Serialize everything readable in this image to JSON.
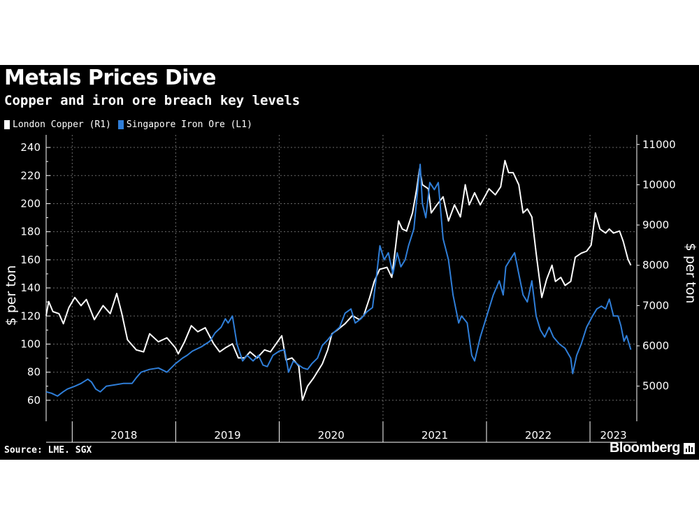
{
  "title": "Metals Prices Dive",
  "subtitle": "Copper and iron ore breach key levels",
  "source": "Source: LME. SGX",
  "brand": "Bloomberg",
  "colors": {
    "background": "#000000",
    "copper": "#ffffff",
    "iron_ore": "#2f7ed8",
    "grid": "#6a6a6a"
  },
  "chart_data": {
    "type": "line",
    "grid": true,
    "legend_position": "top-left",
    "x_labels": [
      "2018",
      "2019",
      "2020",
      "2021",
      "2022",
      "2023"
    ],
    "xlim": [
      "2017-10-01",
      "2023-06-15"
    ],
    "y_left": {
      "label": "$ per ton",
      "ticks": [
        60,
        80,
        100,
        120,
        140,
        160,
        180,
        200,
        220,
        240
      ],
      "lim": [
        50,
        245
      ]
    },
    "y_right": {
      "label": "$ per ton",
      "ticks": [
        5000,
        6000,
        7000,
        8000,
        9000,
        10000,
        11000
      ],
      "lim": [
        4300,
        11100
      ]
    },
    "series": [
      {
        "name": "London Copper (R1)",
        "axis": "right",
        "color": "#ffffff",
        "points": [
          [
            "2017-10-01",
            6750
          ],
          [
            "2017-10-10",
            7100
          ],
          [
            "2017-10-25",
            6850
          ],
          [
            "2017-11-15",
            6800
          ],
          [
            "2017-12-01",
            6550
          ],
          [
            "2017-12-20",
            6950
          ],
          [
            "2018-01-10",
            7200
          ],
          [
            "2018-02-01",
            7000
          ],
          [
            "2018-02-20",
            7150
          ],
          [
            "2018-03-20",
            6650
          ],
          [
            "2018-04-20",
            7000
          ],
          [
            "2018-05-15",
            6800
          ],
          [
            "2018-06-07",
            7300
          ],
          [
            "2018-06-25",
            6800
          ],
          [
            "2018-07-15",
            6150
          ],
          [
            "2018-08-15",
            5900
          ],
          [
            "2018-09-10",
            5850
          ],
          [
            "2018-10-01",
            6300
          ],
          [
            "2018-11-01",
            6100
          ],
          [
            "2018-12-01",
            6200
          ],
          [
            "2018-12-31",
            5950
          ],
          [
            "2019-01-10",
            5800
          ],
          [
            "2019-02-01",
            6100
          ],
          [
            "2019-02-25",
            6500
          ],
          [
            "2019-03-20",
            6350
          ],
          [
            "2019-04-15",
            6450
          ],
          [
            "2019-05-15",
            6050
          ],
          [
            "2019-06-05",
            5850
          ],
          [
            "2019-06-25",
            5950
          ],
          [
            "2019-07-20",
            6050
          ],
          [
            "2019-08-10",
            5700
          ],
          [
            "2019-09-01",
            5700
          ],
          [
            "2019-09-20",
            5850
          ],
          [
            "2019-10-15",
            5700
          ],
          [
            "2019-11-10",
            5900
          ],
          [
            "2019-12-01",
            5850
          ],
          [
            "2020-01-10",
            6250
          ],
          [
            "2020-01-25",
            5650
          ],
          [
            "2020-02-15",
            5700
          ],
          [
            "2020-03-10",
            5500
          ],
          [
            "2020-03-23",
            4650
          ],
          [
            "2020-04-10",
            5000
          ],
          [
            "2020-05-01",
            5200
          ],
          [
            "2020-06-01",
            5550
          ],
          [
            "2020-06-20",
            5900
          ],
          [
            "2020-07-05",
            6300
          ],
          [
            "2020-07-25",
            6400
          ],
          [
            "2020-08-20",
            6550
          ],
          [
            "2020-09-15",
            6750
          ],
          [
            "2020-10-10",
            6650
          ],
          [
            "2020-10-25",
            6750
          ],
          [
            "2020-11-15",
            7200
          ],
          [
            "2020-12-01",
            7600
          ],
          [
            "2020-12-20",
            7900
          ],
          [
            "2021-01-15",
            7950
          ],
          [
            "2021-02-01",
            7700
          ],
          [
            "2021-02-15",
            8500
          ],
          [
            "2021-02-25",
            9100
          ],
          [
            "2021-03-10",
            8900
          ],
          [
            "2021-03-25",
            8850
          ],
          [
            "2021-04-15",
            9300
          ],
          [
            "2021-04-30",
            9900
          ],
          [
            "2021-05-10",
            10400
          ],
          [
            "2021-05-20",
            10000
          ],
          [
            "2021-06-10",
            9900
          ],
          [
            "2021-06-20",
            9300
          ],
          [
            "2021-07-10",
            9500
          ],
          [
            "2021-08-01",
            9700
          ],
          [
            "2021-08-20",
            9100
          ],
          [
            "2021-09-10",
            9500
          ],
          [
            "2021-10-01",
            9200
          ],
          [
            "2021-10-18",
            10000
          ],
          [
            "2021-11-01",
            9500
          ],
          [
            "2021-11-20",
            9800
          ],
          [
            "2021-12-10",
            9500
          ],
          [
            "2022-01-10",
            9900
          ],
          [
            "2022-02-01",
            9750
          ],
          [
            "2022-02-20",
            9950
          ],
          [
            "2022-03-07",
            10600
          ],
          [
            "2022-03-20",
            10300
          ],
          [
            "2022-04-05",
            10300
          ],
          [
            "2022-04-25",
            10000
          ],
          [
            "2022-05-10",
            9300
          ],
          [
            "2022-05-25",
            9400
          ],
          [
            "2022-06-10",
            9200
          ],
          [
            "2022-06-25",
            8300
          ],
          [
            "2022-07-15",
            7200
          ],
          [
            "2022-08-01",
            7650
          ],
          [
            "2022-08-20",
            8000
          ],
          [
            "2022-09-01",
            7600
          ],
          [
            "2022-09-20",
            7700
          ],
          [
            "2022-10-05",
            7500
          ],
          [
            "2022-10-25",
            7600
          ],
          [
            "2022-11-10",
            8200
          ],
          [
            "2022-12-01",
            8300
          ],
          [
            "2022-12-20",
            8350
          ],
          [
            "2023-01-05",
            8500
          ],
          [
            "2023-01-20",
            9300
          ],
          [
            "2023-02-05",
            8900
          ],
          [
            "2023-02-25",
            8800
          ],
          [
            "2023-03-10",
            8900
          ],
          [
            "2023-03-25",
            8800
          ],
          [
            "2023-04-15",
            8850
          ],
          [
            "2023-04-28",
            8600
          ],
          [
            "2023-05-15",
            8150
          ],
          [
            "2023-05-25",
            8000
          ]
        ]
      },
      {
        "name": "Singapore Iron Ore (L1)",
        "axis": "left",
        "color": "#2f7ed8",
        "points": [
          [
            "2017-10-01",
            66
          ],
          [
            "2017-10-20",
            65
          ],
          [
            "2017-11-10",
            63
          ],
          [
            "2017-11-30",
            66
          ],
          [
            "2017-12-15",
            68
          ],
          [
            "2018-01-10",
            70
          ],
          [
            "2018-02-01",
            72
          ],
          [
            "2018-02-25",
            75
          ],
          [
            "2018-03-10",
            73
          ],
          [
            "2018-03-25",
            68
          ],
          [
            "2018-04-10",
            66
          ],
          [
            "2018-05-01",
            70
          ],
          [
            "2018-06-01",
            71
          ],
          [
            "2018-06-30",
            72
          ],
          [
            "2018-07-31",
            72
          ],
          [
            "2018-08-15",
            76
          ],
          [
            "2018-09-01",
            80
          ],
          [
            "2018-10-01",
            82
          ],
          [
            "2018-11-01",
            83
          ],
          [
            "2018-12-01",
            80
          ],
          [
            "2018-12-31",
            86
          ],
          [
            "2019-01-25",
            90
          ],
          [
            "2019-02-10",
            92
          ],
          [
            "2019-03-01",
            95
          ],
          [
            "2019-04-01",
            98
          ],
          [
            "2019-05-01",
            102
          ],
          [
            "2019-05-20",
            108
          ],
          [
            "2019-06-10",
            112
          ],
          [
            "2019-06-25",
            118
          ],
          [
            "2019-07-05",
            115
          ],
          [
            "2019-07-20",
            120
          ],
          [
            "2019-08-05",
            100
          ],
          [
            "2019-08-25",
            88
          ],
          [
            "2019-09-10",
            92
          ],
          [
            "2019-10-01",
            88
          ],
          [
            "2019-10-20",
            92
          ],
          [
            "2019-11-05",
            85
          ],
          [
            "2019-11-20",
            84
          ],
          [
            "2019-12-10",
            92
          ],
          [
            "2020-01-01",
            95
          ],
          [
            "2020-01-20",
            96
          ],
          [
            "2020-02-03",
            80
          ],
          [
            "2020-02-20",
            88
          ],
          [
            "2020-03-10",
            85
          ],
          [
            "2020-03-25",
            83
          ],
          [
            "2020-04-10",
            82
          ],
          [
            "2020-04-25",
            86
          ],
          [
            "2020-05-15",
            90
          ],
          [
            "2020-06-01",
            99
          ],
          [
            "2020-06-20",
            103
          ],
          [
            "2020-07-10",
            108
          ],
          [
            "2020-08-01",
            112
          ],
          [
            "2020-08-20",
            122
          ],
          [
            "2020-09-10",
            125
          ],
          [
            "2020-09-25",
            115
          ],
          [
            "2020-10-15",
            118
          ],
          [
            "2020-11-05",
            123
          ],
          [
            "2020-11-25",
            126
          ],
          [
            "2020-12-10",
            150
          ],
          [
            "2020-12-21",
            170
          ],
          [
            "2021-01-05",
            160
          ],
          [
            "2021-01-20",
            165
          ],
          [
            "2021-02-05",
            150
          ],
          [
            "2021-02-20",
            165
          ],
          [
            "2021-03-05",
            155
          ],
          [
            "2021-03-20",
            160
          ],
          [
            "2021-04-01",
            170
          ],
          [
            "2021-04-20",
            182
          ],
          [
            "2021-05-12",
            228
          ],
          [
            "2021-05-20",
            200
          ],
          [
            "2021-06-01",
            190
          ],
          [
            "2021-06-15",
            215
          ],
          [
            "2021-07-01",
            210
          ],
          [
            "2021-07-15",
            215
          ],
          [
            "2021-08-01",
            175
          ],
          [
            "2021-08-20",
            160
          ],
          [
            "2021-09-05",
            135
          ],
          [
            "2021-09-25",
            115
          ],
          [
            "2021-10-05",
            120
          ],
          [
            "2021-10-25",
            115
          ],
          [
            "2021-11-10",
            92
          ],
          [
            "2021-11-20",
            88
          ],
          [
            "2021-12-10",
            105
          ],
          [
            "2022-01-05",
            122
          ],
          [
            "2022-01-25",
            135
          ],
          [
            "2022-02-15",
            145
          ],
          [
            "2022-03-01",
            135
          ],
          [
            "2022-03-10",
            155
          ],
          [
            "2022-03-25",
            160
          ],
          [
            "2022-04-10",
            165
          ],
          [
            "2022-04-25",
            150
          ],
          [
            "2022-05-10",
            135
          ],
          [
            "2022-05-25",
            130
          ],
          [
            "2022-06-10",
            145
          ],
          [
            "2022-06-25",
            120
          ],
          [
            "2022-07-10",
            110
          ],
          [
            "2022-07-25",
            105
          ],
          [
            "2022-08-10",
            112
          ],
          [
            "2022-08-25",
            105
          ],
          [
            "2022-09-15",
            100
          ],
          [
            "2022-10-05",
            97
          ],
          [
            "2022-10-25",
            90
          ],
          [
            "2022-11-01",
            79
          ],
          [
            "2022-11-15",
            92
          ],
          [
            "2022-12-01",
            100
          ],
          [
            "2022-12-20",
            112
          ],
          [
            "2023-01-10",
            120
          ],
          [
            "2023-01-25",
            125
          ],
          [
            "2023-02-10",
            127
          ],
          [
            "2023-02-25",
            125
          ],
          [
            "2023-03-10",
            132
          ],
          [
            "2023-03-25",
            120
          ],
          [
            "2023-04-10",
            120
          ],
          [
            "2023-04-20",
            113
          ],
          [
            "2023-05-01",
            102
          ],
          [
            "2023-05-10",
            106
          ],
          [
            "2023-05-25",
            96
          ]
        ]
      }
    ]
  }
}
